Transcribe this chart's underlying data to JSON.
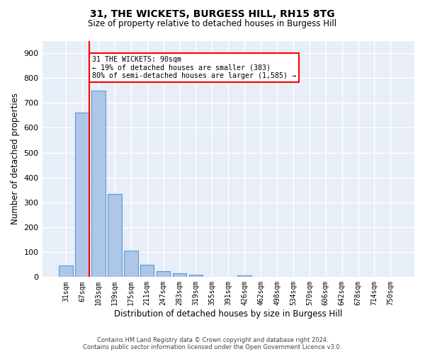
{
  "title_line1": "31, THE WICKETS, BURGESS HILL, RH15 8TG",
  "title_line2": "Size of property relative to detached houses in Burgess Hill",
  "xlabel": "Distribution of detached houses by size in Burgess Hill",
  "ylabel": "Number of detached properties",
  "bar_labels": [
    "31sqm",
    "67sqm",
    "103sqm",
    "139sqm",
    "175sqm",
    "211sqm",
    "247sqm",
    "283sqm",
    "319sqm",
    "355sqm",
    "391sqm",
    "426sqm",
    "462sqm",
    "498sqm",
    "534sqm",
    "570sqm",
    "606sqm",
    "642sqm",
    "678sqm",
    "714sqm",
    "750sqm"
  ],
  "bar_values": [
    47,
    660,
    748,
    335,
    105,
    48,
    23,
    14,
    10,
    0,
    0,
    8,
    0,
    0,
    0,
    0,
    0,
    0,
    0,
    0,
    0
  ],
  "bar_color": "#aec6e8",
  "bar_edgecolor": "#5b9bd5",
  "ylim": [
    0,
    950
  ],
  "yticks": [
    0,
    100,
    200,
    300,
    400,
    500,
    600,
    700,
    800,
    900
  ],
  "annotation_text_line1": "31 THE WICKETS: 90sqm",
  "annotation_text_line2": "← 19% of detached houses are smaller (383)",
  "annotation_text_line3": "80% of semi-detached houses are larger (1,585) →",
  "annotation_box_color": "white",
  "annotation_box_edgecolor": "red",
  "background_color": "#e8eef7",
  "grid_color": "white",
  "footer_line1": "Contains HM Land Registry data © Crown copyright and database right 2024.",
  "footer_line2": "Contains public sector information licensed under the Open Government Licence v3.0."
}
